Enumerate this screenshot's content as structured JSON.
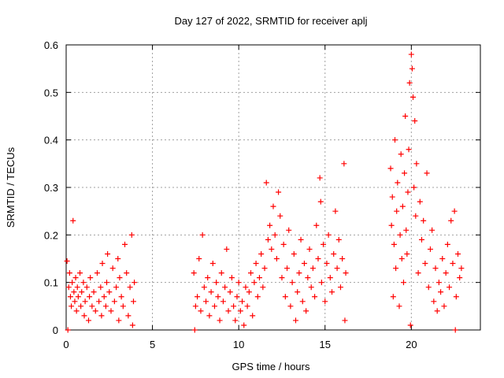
{
  "chart_data": {
    "type": "scatter",
    "title": "Day 127 of 2022, SRMTID for receiver aplj",
    "xlabel": "GPS time / hours",
    "ylabel": "SRMTID / TECUs",
    "xlim": [
      0,
      24
    ],
    "ylim": [
      0,
      0.6
    ],
    "xticks": [
      0,
      5,
      10,
      15,
      20
    ],
    "yticks": [
      0,
      0.1,
      0.2,
      0.3,
      0.4,
      0.5,
      0.6
    ],
    "xtick_labels": [
      "0",
      "5",
      "10",
      "15",
      "20"
    ],
    "ytick_labels": [
      "0",
      "0.1",
      "0.2",
      "0.3",
      "0.4",
      "0.5",
      "0.6"
    ],
    "grid": true,
    "series": [
      {
        "name": "SRMTID",
        "color": "#ff0000",
        "marker": "plus",
        "points": [
          [
            0.05,
            0.145
          ],
          [
            0.1,
            0.0
          ],
          [
            0.15,
            0.09
          ],
          [
            0.2,
            0.12
          ],
          [
            0.25,
            0.07
          ],
          [
            0.3,
            0.05
          ],
          [
            0.35,
            0.1
          ],
          [
            0.4,
            0.23
          ],
          [
            0.45,
            0.08
          ],
          [
            0.5,
            0.06
          ],
          [
            0.55,
            0.11
          ],
          [
            0.6,
            0.04
          ],
          [
            0.65,
            0.09
          ],
          [
            0.7,
            0.07
          ],
          [
            0.8,
            0.12
          ],
          [
            0.85,
            0.05
          ],
          [
            0.9,
            0.08
          ],
          [
            1.0,
            0.1
          ],
          [
            1.05,
            0.03
          ],
          [
            1.1,
            0.06
          ],
          [
            1.2,
            0.09
          ],
          [
            1.3,
            0.02
          ],
          [
            1.35,
            0.07
          ],
          [
            1.4,
            0.11
          ],
          [
            1.5,
            0.05
          ],
          [
            1.6,
            0.08
          ],
          [
            1.7,
            0.04
          ],
          [
            1.8,
            0.12
          ],
          [
            1.9,
            0.06
          ],
          [
            2.0,
            0.09
          ],
          [
            2.05,
            0.03
          ],
          [
            2.1,
            0.14
          ],
          [
            2.2,
            0.07
          ],
          [
            2.3,
            0.05
          ],
          [
            2.35,
            0.1
          ],
          [
            2.4,
            0.16
          ],
          [
            2.5,
            0.08
          ],
          [
            2.6,
            0.04
          ],
          [
            2.7,
            0.13
          ],
          [
            2.8,
            0.06
          ],
          [
            2.9,
            0.09
          ],
          [
            3.0,
            0.15
          ],
          [
            3.05,
            0.02
          ],
          [
            3.1,
            0.11
          ],
          [
            3.2,
            0.07
          ],
          [
            3.3,
            0.05
          ],
          [
            3.4,
            0.18
          ],
          [
            3.5,
            0.12
          ],
          [
            3.6,
            0.03
          ],
          [
            3.7,
            0.09
          ],
          [
            3.8,
            0.2
          ],
          [
            3.85,
            0.01
          ],
          [
            3.9,
            0.06
          ],
          [
            3.95,
            0.1
          ],
          [
            7.4,
            0.12
          ],
          [
            7.45,
            0.0
          ],
          [
            7.5,
            0.05
          ],
          [
            7.6,
            0.07
          ],
          [
            7.7,
            0.15
          ],
          [
            7.8,
            0.04
          ],
          [
            7.9,
            0.2
          ],
          [
            8.0,
            0.09
          ],
          [
            8.1,
            0.06
          ],
          [
            8.2,
            0.11
          ],
          [
            8.3,
            0.03
          ],
          [
            8.4,
            0.08
          ],
          [
            8.5,
            0.14
          ],
          [
            8.6,
            0.05
          ],
          [
            8.7,
            0.1
          ],
          [
            8.8,
            0.07
          ],
          [
            8.9,
            0.02
          ],
          [
            9.0,
            0.12
          ],
          [
            9.1,
            0.06
          ],
          [
            9.2,
            0.09
          ],
          [
            9.3,
            0.17
          ],
          [
            9.4,
            0.04
          ],
          [
            9.5,
            0.08
          ],
          [
            9.6,
            0.11
          ],
          [
            9.7,
            0.05
          ],
          [
            9.8,
            0.02
          ],
          [
            9.9,
            0.07
          ],
          [
            10.0,
            0.1
          ],
          [
            10.1,
            0.04
          ],
          [
            10.2,
            0.06
          ],
          [
            10.3,
            0.01
          ],
          [
            10.4,
            0.09
          ],
          [
            10.5,
            0.05
          ],
          [
            10.6,
            0.08
          ],
          [
            10.7,
            0.12
          ],
          [
            10.8,
            0.03
          ],
          [
            10.9,
            0.1
          ],
          [
            11.0,
            0.14
          ],
          [
            11.1,
            0.07
          ],
          [
            11.2,
            0.11
          ],
          [
            11.3,
            0.16
          ],
          [
            11.4,
            0.09
          ],
          [
            11.5,
            0.13
          ],
          [
            11.6,
            0.31
          ],
          [
            11.7,
            0.19
          ],
          [
            11.8,
            0.22
          ],
          [
            11.9,
            0.17
          ],
          [
            12.0,
            0.26
          ],
          [
            12.1,
            0.2
          ],
          [
            12.2,
            0.15
          ],
          [
            12.3,
            0.29
          ],
          [
            12.4,
            0.24
          ],
          [
            12.5,
            0.11
          ],
          [
            12.6,
            0.18
          ],
          [
            12.7,
            0.07
          ],
          [
            12.8,
            0.13
          ],
          [
            12.9,
            0.21
          ],
          [
            13.0,
            0.05
          ],
          [
            13.1,
            0.1
          ],
          [
            13.2,
            0.16
          ],
          [
            13.3,
            0.02
          ],
          [
            13.4,
            0.08
          ],
          [
            13.5,
            0.12
          ],
          [
            13.6,
            0.19
          ],
          [
            13.7,
            0.06
          ],
          [
            13.8,
            0.14
          ],
          [
            13.9,
            0.04
          ],
          [
            14.0,
            0.11
          ],
          [
            14.1,
            0.17
          ],
          [
            14.2,
            0.09
          ],
          [
            14.3,
            0.13
          ],
          [
            14.4,
            0.07
          ],
          [
            14.5,
            0.22
          ],
          [
            14.6,
            0.15
          ],
          [
            14.7,
            0.32
          ],
          [
            14.75,
            0.27
          ],
          [
            14.8,
            0.1
          ],
          [
            14.9,
            0.18
          ],
          [
            15.0,
            0.06
          ],
          [
            15.1,
            0.14
          ],
          [
            15.2,
            0.2
          ],
          [
            15.3,
            0.11
          ],
          [
            15.4,
            0.08
          ],
          [
            15.5,
            0.16
          ],
          [
            15.6,
            0.25
          ],
          [
            15.7,
            0.13
          ],
          [
            15.8,
            0.19
          ],
          [
            15.9,
            0.09
          ],
          [
            16.0,
            0.15
          ],
          [
            16.1,
            0.35
          ],
          [
            16.15,
            0.02
          ],
          [
            16.2,
            0.12
          ],
          [
            18.8,
            0.34
          ],
          [
            18.85,
            0.22
          ],
          [
            18.9,
            0.28
          ],
          [
            18.95,
            0.07
          ],
          [
            19.0,
            0.18
          ],
          [
            19.05,
            0.4
          ],
          [
            19.1,
            0.13
          ],
          [
            19.15,
            0.25
          ],
          [
            19.2,
            0.31
          ],
          [
            19.3,
            0.05
          ],
          [
            19.35,
            0.2
          ],
          [
            19.4,
            0.37
          ],
          [
            19.45,
            0.15
          ],
          [
            19.5,
            0.26
          ],
          [
            19.55,
            0.1
          ],
          [
            19.6,
            0.33
          ],
          [
            19.65,
            0.45
          ],
          [
            19.7,
            0.21
          ],
          [
            19.75,
            0.16
          ],
          [
            19.8,
            0.29
          ],
          [
            19.85,
            0.38
          ],
          [
            19.9,
            0.52
          ],
          [
            19.95,
            0.01
          ],
          [
            20.0,
            0.58
          ],
          [
            20.05,
            0.55
          ],
          [
            20.1,
            0.49
          ],
          [
            20.15,
            0.3
          ],
          [
            20.2,
            0.44
          ],
          [
            20.25,
            0.24
          ],
          [
            20.3,
            0.35
          ],
          [
            20.4,
            0.12
          ],
          [
            20.5,
            0.27
          ],
          [
            20.6,
            0.19
          ],
          [
            20.7,
            0.23
          ],
          [
            20.8,
            0.14
          ],
          [
            20.9,
            0.33
          ],
          [
            21.0,
            0.09
          ],
          [
            21.1,
            0.17
          ],
          [
            21.2,
            0.21
          ],
          [
            21.3,
            0.06
          ],
          [
            21.4,
            0.13
          ],
          [
            21.5,
            0.04
          ],
          [
            21.6,
            0.1
          ],
          [
            21.7,
            0.08
          ],
          [
            21.8,
            0.15
          ],
          [
            21.9,
            0.05
          ],
          [
            22.0,
            0.12
          ],
          [
            22.1,
            0.18
          ],
          [
            22.2,
            0.09
          ],
          [
            22.3,
            0.23
          ],
          [
            22.4,
            0.14
          ],
          [
            22.5,
            0.25
          ],
          [
            22.55,
            0.0
          ],
          [
            22.6,
            0.07
          ],
          [
            22.7,
            0.16
          ],
          [
            22.8,
            0.11
          ],
          [
            22.9,
            0.13
          ]
        ]
      }
    ]
  }
}
